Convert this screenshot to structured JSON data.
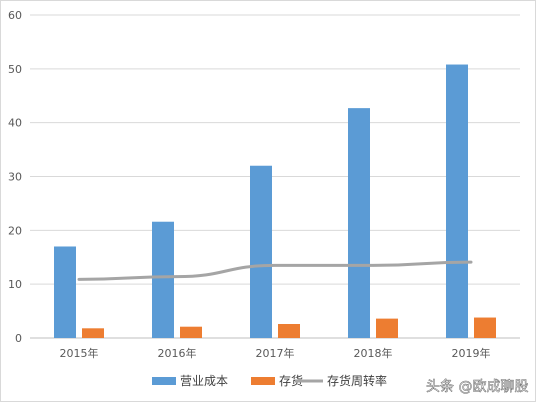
{
  "chart_data": {
    "type": "bar",
    "categories": [
      "2015年",
      "2016年",
      "2017年",
      "2018年",
      "2019年"
    ],
    "series": [
      {
        "name": "营业成本",
        "kind": "bar",
        "values": [
          17,
          21.6,
          32,
          42.7,
          50.8
        ],
        "color": "#5b9bd5"
      },
      {
        "name": "存货",
        "kind": "bar",
        "values": [
          1.8,
          2.1,
          2.6,
          3.6,
          3.8
        ],
        "color": "#ed7d31"
      },
      {
        "name": "存货周转率",
        "kind": "line",
        "values": [
          10.9,
          11.4,
          13.5,
          13.5,
          14.1
        ],
        "color": "#a5a5a5"
      }
    ],
    "y_ticks": [
      "0",
      "10",
      "20",
      "30",
      "40",
      "50",
      "60"
    ],
    "ylim": [
      0,
      60
    ],
    "grid": true,
    "legend_position": "bottom"
  },
  "watermark": {
    "text": "头条 @欧成聊股"
  }
}
